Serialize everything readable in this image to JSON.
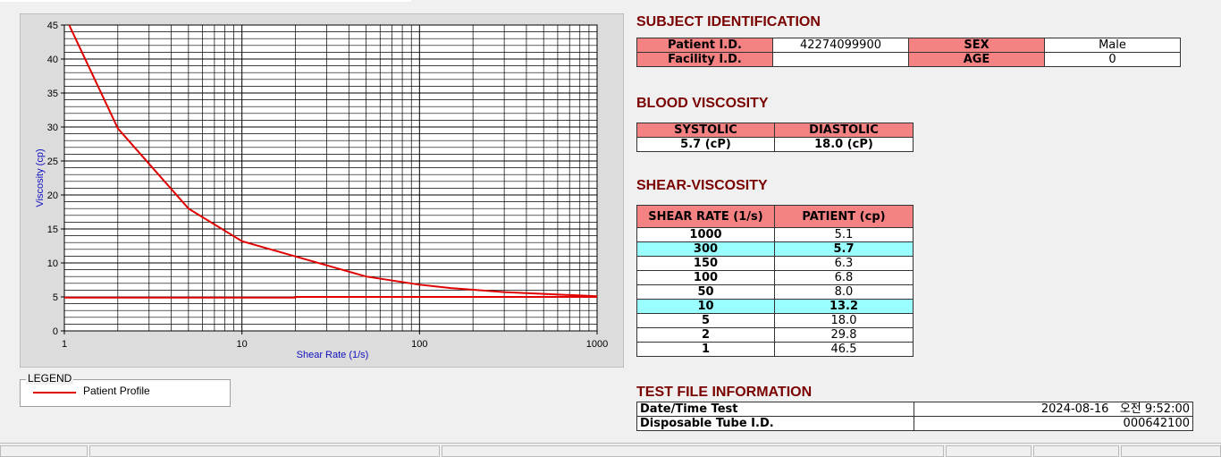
{
  "chart_data": {
    "type": "line",
    "xlabel": "Shear Rate (1/s)",
    "ylabel": "Viscosity (cp)",
    "xscale": "log",
    "xlim": [
      1,
      1000
    ],
    "xticks": [
      1,
      10,
      100,
      1000
    ],
    "ylim": [
      0,
      45
    ],
    "yticks": [
      0,
      5,
      10,
      15,
      20,
      25,
      30,
      35,
      40,
      45
    ],
    "grid": true,
    "minor_grid": true,
    "legend_title": "LEGEND",
    "series": [
      {
        "name": "Patient Profile",
        "color": "#e00000",
        "x": [
          1,
          2,
          5,
          10,
          50,
          100,
          150,
          300,
          1000
        ],
        "values": [
          46.5,
          29.8,
          18.0,
          13.2,
          8.0,
          6.8,
          6.3,
          5.7,
          5.1
        ]
      },
      {
        "color": "#e00000",
        "x": [
          1,
          20,
          20,
          1000
        ],
        "values": [
          4.9,
          4.9,
          5.0,
          5.0
        ]
      }
    ]
  },
  "subject": {
    "title": "SUBJECT IDENTIFICATION",
    "rows": [
      [
        "Patient I.D.",
        "42274099900",
        "SEX",
        "Male"
      ],
      [
        "Facility I.D.",
        null,
        "AGE",
        "0"
      ]
    ]
  },
  "blood": {
    "title": "BLOOD VISCOSITY",
    "headers": [
      "SYSTOLIC",
      "DIASTOLIC"
    ],
    "values": [
      "5.7 (cP)",
      "18.0 (cP)"
    ]
  },
  "shear": {
    "title": "SHEAR-VISCOSITY",
    "headers": [
      "SHEAR RATE (1/s)",
      "PATIENT (cp)"
    ],
    "highlight_rows": [
      1,
      5
    ],
    "rows": [
      [
        "1000",
        "5.1"
      ],
      [
        "300",
        "5.7"
      ],
      [
        "150",
        "6.3"
      ],
      [
        "100",
        "6.8"
      ],
      [
        "50",
        "8.0"
      ],
      [
        "10",
        "13.2"
      ],
      [
        "5",
        "18.0"
      ],
      [
        "2",
        "29.8"
      ],
      [
        "1",
        "46.5"
      ]
    ]
  },
  "test_file": {
    "title": "TEST FILE INFORMATION",
    "rows": [
      [
        "Date/Time Test",
        "2024-08-16   오전 9:52:00"
      ],
      [
        "Disposable Tube I.D.",
        "000642100"
      ]
    ]
  }
}
